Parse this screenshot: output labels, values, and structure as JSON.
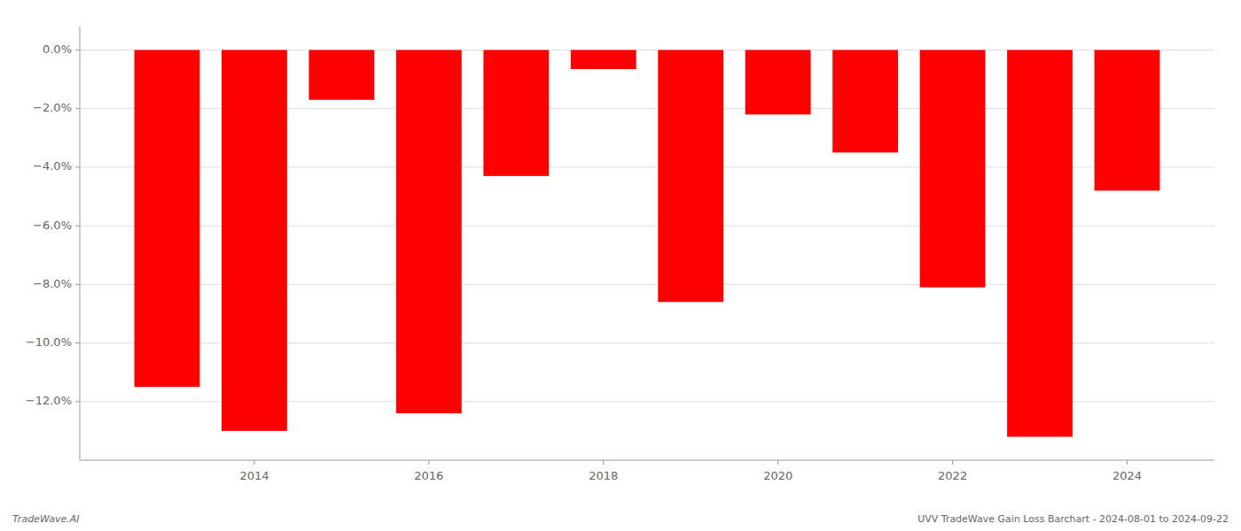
{
  "chart_data": {
    "type": "bar",
    "x": [
      2013,
      2014,
      2015,
      2016,
      2017,
      2018,
      2019,
      2020,
      2021,
      2022,
      2023,
      2024
    ],
    "values": [
      -11.5,
      -13.0,
      -1.7,
      -12.4,
      -4.3,
      -0.65,
      -8.6,
      -2.2,
      -3.5,
      -8.1,
      -13.2,
      -4.8
    ],
    "color": "#ff0000",
    "xlim": [
      2012,
      2025
    ],
    "xticks": [
      2014,
      2016,
      2018,
      2020,
      2022,
      2024
    ],
    "ylim": [
      -14.0,
      0.8
    ],
    "yticks": [
      {
        "value": 0.0,
        "label": "0.0%"
      },
      {
        "value": -2.0,
        "label": "−2.0%"
      },
      {
        "value": -4.0,
        "label": "−4.0%"
      },
      {
        "value": -6.0,
        "label": "−6.0%"
      },
      {
        "value": -8.0,
        "label": "−8.0%"
      },
      {
        "value": -10.0,
        "label": "−10.0%"
      },
      {
        "value": -12.0,
        "label": "−12.0%"
      }
    ],
    "grid": true,
    "annotations": [
      "TradeWave.AI",
      "UVV TradeWave Gain Loss Barchart - 2024-08-01 to 2024-09-22"
    ]
  }
}
